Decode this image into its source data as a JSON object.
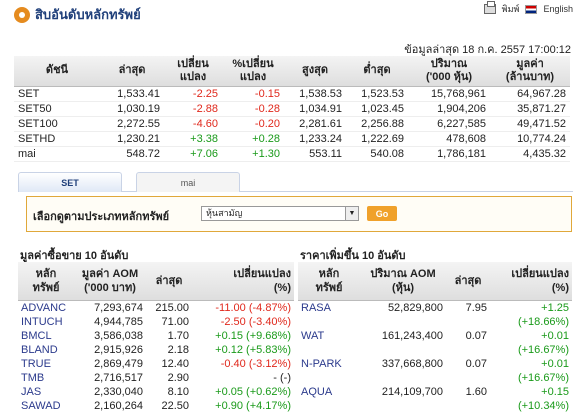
{
  "header": {
    "title": "สิบอันดับหลักทรัพย์",
    "print_label": "พิมพ์",
    "english_label": "English"
  },
  "updated": "ข้อมูลล่าสุด 18 ก.ค. 2557 17:00:12",
  "index_table": {
    "headers": [
      "ดัชนี",
      "ล่าสุด",
      "เปลี่ยน\nแปลง",
      "%เปลี่ยน\nแปลง",
      "สูงสุด",
      "ต่ำสุด",
      "ปริมาณ\n('000 หุ้น)",
      "มูลค่า\n(ล้านบาท)"
    ],
    "rows": [
      [
        "SET",
        "1,533.41",
        "-2.25",
        "-0.15",
        "1,538.53",
        "1,523.53",
        "15,768,961",
        "64,967.28"
      ],
      [
        "SET50",
        "1,030.19",
        "-2.88",
        "-0.28",
        "1,034.91",
        "1,023.45",
        "1,904,206",
        "35,871.27"
      ],
      [
        "SET100",
        "2,272.55",
        "-4.60",
        "-0.20",
        "2,281.61",
        "2,256.88",
        "6,227,585",
        "49,471.52"
      ],
      [
        "SETHD",
        "1,230.21",
        "+3.38",
        "+0.28",
        "1,233.24",
        "1,222.69",
        "478,608",
        "10,774.24"
      ],
      [
        "mai",
        "548.72",
        "+7.06",
        "+1.30",
        "553.11",
        "540.08",
        "1,786,181",
        "4,435.32"
      ]
    ]
  },
  "tabs": [
    "SET",
    "mai"
  ],
  "filter": {
    "label": "เลือกดูตามประเภทหลักทรัพย์",
    "selected": "หุ้นสามัญ",
    "go_label": "Go"
  },
  "top_value": {
    "title": "มูลค่าซื้อขาย 10 อันดับ",
    "headers": [
      "หลัก\nทรัพย์",
      "มูลค่า AOM\n('000 บาท)",
      "ล่าสุด",
      "เปลี่ยนแปลง\n(%)"
    ],
    "rows": [
      [
        "ADVANC",
        "7,293,674",
        "215.00",
        "-11.00 (-4.87%)"
      ],
      [
        "INTUCH",
        "4,944,785",
        "71.00",
        "-2.50 (-3.40%)"
      ],
      [
        "BMCL",
        "3,586,038",
        "1.70",
        "+0.15 (+9.68%)"
      ],
      [
        "BLAND",
        "2,915,926",
        "2.18",
        "+0.12 (+5.83%)"
      ],
      [
        "TRUE",
        "2,869,479",
        "12.40",
        "-0.40 (-3.12%)"
      ],
      [
        "TMB",
        "2,716,517",
        "2.90",
        "- (-)"
      ],
      [
        "JAS",
        "2,330,040",
        "8.10",
        "+0.05 (+0.62%)"
      ],
      [
        "SAWAD",
        "2,160,264",
        "22.50",
        "+0.90 (+4.17%)"
      ]
    ]
  },
  "top_gainers": {
    "title": "ราคาเพิ่มขึ้น 10 อันดับ",
    "headers": [
      "หลัก\nทรัพย์",
      "ปริมาณ AOM\n(หุ้น)",
      "ล่าสุด",
      "เปลี่ยนแปลง\n(%)"
    ],
    "rows": [
      [
        "RASA",
        "52,829,800",
        "7.95",
        "+1.25",
        "(+18.66%)"
      ],
      [
        "WAT",
        "161,243,400",
        "0.07",
        "+0.01",
        "(+16.67%)"
      ],
      [
        "N-PARK",
        "337,668,800",
        "0.07",
        "+0.01",
        "(+16.67%)"
      ],
      [
        "AQUA",
        "214,109,700",
        "1.60",
        "+0.15",
        "(+10.34%)"
      ]
    ]
  },
  "colors": {
    "negative": "#e0281c",
    "positive": "#1a9a1a",
    "symbol": "#2b3a8c",
    "accent": "#f0a12a"
  }
}
